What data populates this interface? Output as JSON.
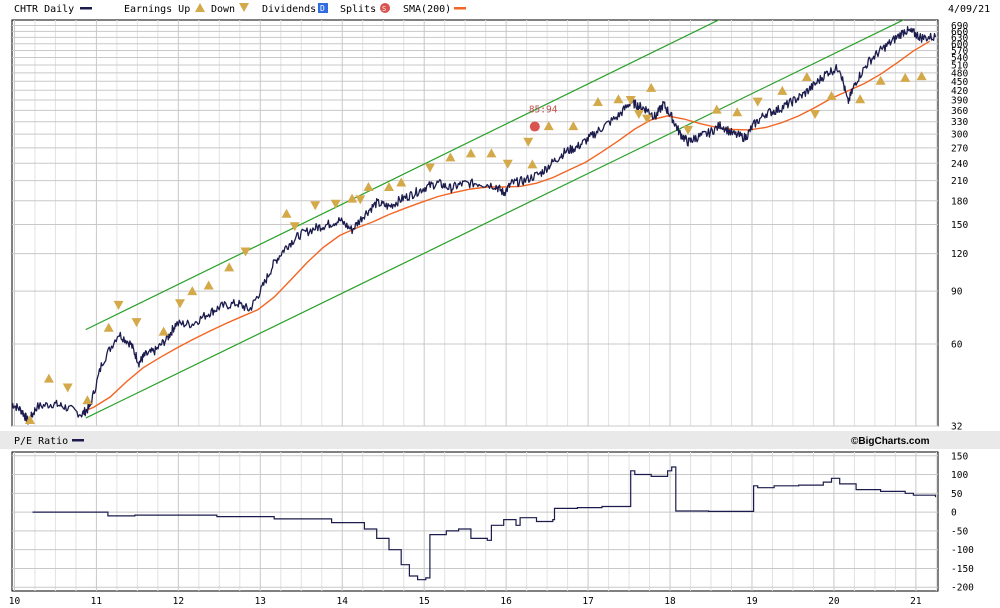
{
  "header": {
    "symbol_label": "CHTR Daily",
    "earnings_label": "Earnings Up",
    "down_label": "Down",
    "dividends_label": "Dividends",
    "dividends_badge": "D",
    "splits_label": "Splits",
    "splits_badge": "S",
    "sma_label": "SMA(200)",
    "date_label": "4/09/21"
  },
  "colors": {
    "price_line": "#1b1b4d",
    "sma_line": "#f26522",
    "channel_line": "#2aa02a",
    "grid": "#c8c8c8",
    "earnings_marker": "#d4a94a",
    "dividend_badge": "#2f6de1",
    "split_badge": "#d9534f"
  },
  "brand": "©BigCharts.com",
  "split_annotation": "85:94",
  "chart_data": [
    {
      "type": "line",
      "scale": "log",
      "title": "CHTR Daily",
      "x_tick_labels": [
        "10",
        "11",
        "12",
        "13",
        "14",
        "15",
        "16",
        "17",
        "18",
        "19",
        "20",
        "21"
      ],
      "y_tick_labels": [
        "690",
        "660",
        "630",
        "600",
        "570",
        "540",
        "510",
        "480",
        "450",
        "420",
        "390",
        "360",
        "330",
        "300",
        "270",
        "240",
        "210",
        "180",
        "150",
        "120",
        "90",
        "60",
        "32"
      ],
      "ylim": [
        32,
        720
      ],
      "xlim": [
        2010.0,
        2021.3
      ],
      "grid": true,
      "legend": "top",
      "series": [
        {
          "name": "CHTR Daily",
          "x": [
            2010.0,
            2010.12,
            2010.2,
            2010.3,
            2010.5,
            2010.65,
            2010.85,
            2010.95,
            2011.1,
            2011.3,
            2011.45,
            2011.55,
            2011.62,
            2011.75,
            2011.9,
            2012.0,
            2012.2,
            2012.4,
            2012.55,
            2012.75,
            2012.9,
            2013.05,
            2013.2,
            2013.35,
            2013.5,
            2013.7,
            2013.85,
            2014.0,
            2014.15,
            2014.3,
            2014.45,
            2014.6,
            2014.75,
            2014.9,
            2015.05,
            2015.2,
            2015.35,
            2015.5,
            2015.7,
            2015.9,
            2016.0,
            2016.1,
            2016.25,
            2016.45,
            2016.6,
            2016.75,
            2016.9,
            2017.05,
            2017.2,
            2017.4,
            2017.55,
            2017.65,
            2017.75,
            2017.85,
            2017.95,
            2018.05,
            2018.15,
            2018.25,
            2018.35,
            2018.5,
            2018.65,
            2018.8,
            2018.95,
            2019.05,
            2019.2,
            2019.35,
            2019.5,
            2019.65,
            2019.8,
            2019.95,
            2020.1,
            2020.2,
            2020.3,
            2020.45,
            2020.6,
            2020.75,
            2020.9,
            2021.0,
            2021.1,
            2021.27
          ],
          "values": [
            38,
            36,
            33,
            37,
            38,
            37,
            35,
            37,
            52,
            65,
            60,
            52,
            55,
            57,
            63,
            70,
            70,
            76,
            80,
            82,
            78,
            92,
            112,
            127,
            138,
            146,
            150,
            155,
            144,
            162,
            177,
            172,
            182,
            190,
            200,
            206,
            198,
            205,
            206,
            202,
            191,
            206,
            210,
            222,
            242,
            262,
            272,
            292,
            315,
            345,
            384,
            372,
            362,
            342,
            378,
            342,
            302,
            282,
            292,
            302,
            322,
            300,
            292,
            322,
            352,
            362,
            382,
            405,
            440,
            482,
            500,
            382,
            450,
            522,
            570,
            615,
            665,
            652,
            628,
            632
          ]
        },
        {
          "name": "SMA(200)",
          "x": [
            2010.9,
            2011.0,
            2011.2,
            2011.4,
            2011.6,
            2011.8,
            2012.0,
            2012.2,
            2012.4,
            2012.6,
            2012.8,
            2013.0,
            2013.2,
            2013.4,
            2013.6,
            2013.8,
            2014.0,
            2014.2,
            2014.4,
            2014.6,
            2014.8,
            2015.0,
            2015.2,
            2015.4,
            2015.6,
            2015.8,
            2016.0,
            2016.2,
            2016.4,
            2016.6,
            2016.8,
            2017.0,
            2017.2,
            2017.4,
            2017.6,
            2017.8,
            2018.0,
            2018.2,
            2018.4,
            2018.6,
            2018.8,
            2019.0,
            2019.2,
            2019.4,
            2019.6,
            2019.8,
            2020.0,
            2020.2,
            2020.4,
            2020.6,
            2020.8,
            2021.0,
            2021.2
          ],
          "values": [
            36,
            37,
            40,
            45,
            50,
            54,
            58,
            62,
            66,
            70,
            74,
            78,
            86,
            98,
            112,
            126,
            138,
            146,
            153,
            162,
            170,
            178,
            186,
            192,
            197,
            200,
            200,
            201,
            206,
            215,
            228,
            242,
            262,
            285,
            312,
            335,
            345,
            337,
            325,
            316,
            311,
            310,
            316,
            328,
            345,
            368,
            395,
            418,
            442,
            475,
            518,
            568,
            612
          ]
        }
      ],
      "channel_lines": [
        {
          "name": "upper",
          "x": [
            2010.9,
            2021.3
          ],
          "values": [
            67,
            1640
          ]
        },
        {
          "name": "lower",
          "x": [
            2010.9,
            2021.3
          ],
          "values": [
            34,
            820
          ]
        }
      ],
      "earnings_up": [
        {
          "x": 2010.22,
          "y": 33.5
        },
        {
          "x": 2010.45,
          "y": 46
        },
        {
          "x": 2010.92,
          "y": 39
        },
        {
          "x": 2011.18,
          "y": 68
        },
        {
          "x": 2011.85,
          "y": 66
        },
        {
          "x": 2012.2,
          "y": 90
        },
        {
          "x": 2012.4,
          "y": 94
        },
        {
          "x": 2012.65,
          "y": 108
        },
        {
          "x": 2013.35,
          "y": 163
        },
        {
          "x": 2014.15,
          "y": 183
        },
        {
          "x": 2014.35,
          "y": 200
        },
        {
          "x": 2014.6,
          "y": 200
        },
        {
          "x": 2014.75,
          "y": 207
        },
        {
          "x": 2015.35,
          "y": 251
        },
        {
          "x": 2015.6,
          "y": 259
        },
        {
          "x": 2015.85,
          "y": 259
        },
        {
          "x": 2016.35,
          "y": 238
        },
        {
          "x": 2016.55,
          "y": 319
        },
        {
          "x": 2016.85,
          "y": 319
        },
        {
          "x": 2017.15,
          "y": 384
        },
        {
          "x": 2017.4,
          "y": 392
        },
        {
          "x": 2017.8,
          "y": 428
        },
        {
          "x": 2018.6,
          "y": 362
        },
        {
          "x": 2018.85,
          "y": 355
        },
        {
          "x": 2019.4,
          "y": 418
        },
        {
          "x": 2019.7,
          "y": 465
        },
        {
          "x": 2020.0,
          "y": 402
        },
        {
          "x": 2020.35,
          "y": 392
        },
        {
          "x": 2020.6,
          "y": 452
        },
        {
          "x": 2020.9,
          "y": 462
        },
        {
          "x": 2021.1,
          "y": 468
        }
      ],
      "earnings_down": [
        {
          "x": 2010.68,
          "y": 43
        },
        {
          "x": 2011.3,
          "y": 81
        },
        {
          "x": 2011.52,
          "y": 71
        },
        {
          "x": 2012.05,
          "y": 82
        },
        {
          "x": 2012.85,
          "y": 122
        },
        {
          "x": 2013.45,
          "y": 148
        },
        {
          "x": 2013.7,
          "y": 174
        },
        {
          "x": 2013.95,
          "y": 176
        },
        {
          "x": 2014.25,
          "y": 182
        },
        {
          "x": 2015.1,
          "y": 232
        },
        {
          "x": 2016.05,
          "y": 239
        },
        {
          "x": 2016.3,
          "y": 283
        },
        {
          "x": 2017.55,
          "y": 390
        },
        {
          "x": 2017.65,
          "y": 350
        },
        {
          "x": 2017.75,
          "y": 338
        },
        {
          "x": 2018.25,
          "y": 310
        },
        {
          "x": 2019.1,
          "y": 385
        },
        {
          "x": 2019.8,
          "y": 350
        }
      ],
      "split": {
        "x": 2016.38,
        "y": 318,
        "label": "85:94"
      }
    },
    {
      "type": "line",
      "title": "P/E Ratio",
      "x_tick_labels": [
        "10",
        "11",
        "12",
        "13",
        "14",
        "15",
        "16",
        "17",
        "18",
        "19",
        "20",
        "21"
      ],
      "y_tick_labels": [
        "150",
        "100",
        "50",
        "0",
        "-50",
        "-100",
        "-150",
        "-200"
      ],
      "ylim": [
        -210,
        160
      ],
      "xlim": [
        2010.0,
        2021.3
      ],
      "grid": true,
      "series": [
        {
          "name": "P/E Ratio",
          "x": [
            2010.25,
            2011.15,
            2011.17,
            2011.5,
            2012.5,
            2013.2,
            2013.9,
            2014.3,
            2014.45,
            2014.6,
            2014.75,
            2014.85,
            2014.95,
            2015.05,
            2015.1,
            2015.3,
            2015.45,
            2015.6,
            2015.8,
            2015.85,
            2016.0,
            2016.15,
            2016.2,
            2016.4,
            2016.6,
            2016.62,
            2016.9,
            2017.2,
            2017.5,
            2017.55,
            2017.6,
            2017.8,
            2018.0,
            2018.05,
            2018.1,
            2018.5,
            2019.0,
            2019.05,
            2019.1,
            2019.3,
            2019.6,
            2019.9,
            2020.0,
            2020.1,
            2020.3,
            2020.6,
            2020.9,
            2021.0,
            2021.27
          ],
          "values": [
            0,
            0,
            -10,
            -8,
            -12,
            -18,
            -28,
            -45,
            -70,
            -100,
            -140,
            -170,
            -180,
            -175,
            -60,
            -50,
            -45,
            -70,
            -75,
            -35,
            -20,
            -35,
            -15,
            -25,
            -20,
            10,
            12,
            15,
            15,
            110,
            100,
            95,
            110,
            120,
            3,
            2,
            2,
            70,
            65,
            70,
            72,
            80,
            90,
            75,
            60,
            55,
            50,
            45,
            40
          ]
        }
      ]
    }
  ]
}
